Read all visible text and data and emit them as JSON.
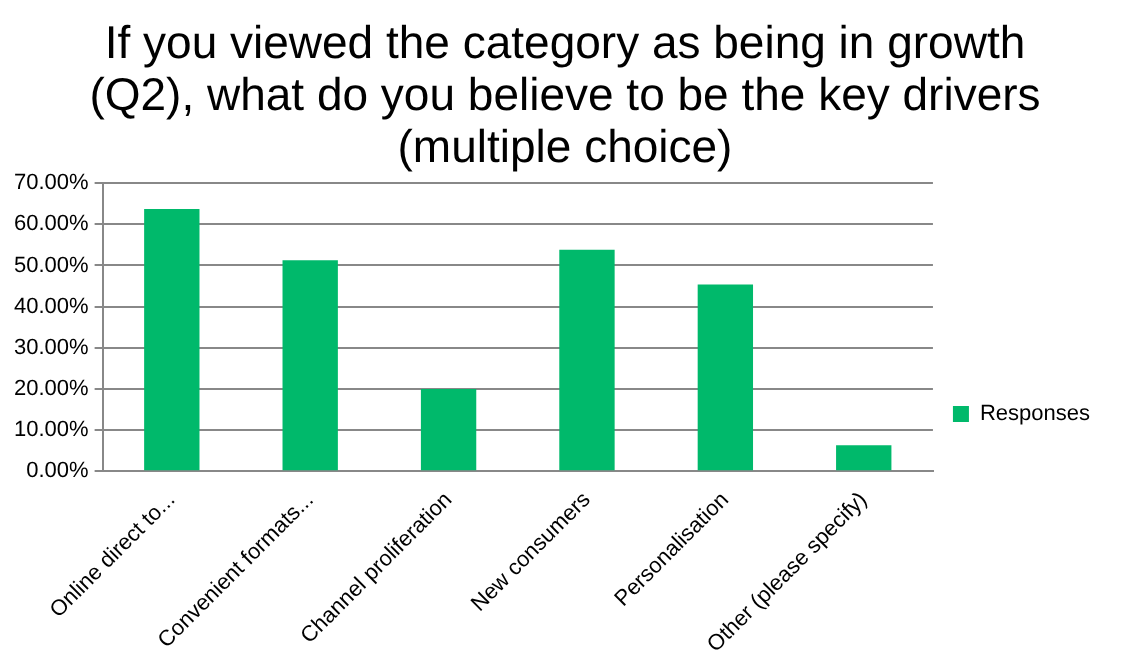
{
  "chart_data": {
    "type": "bar",
    "title": "If you viewed the category as being in growth (Q2), what do you believe to be the key drivers (multiple choice)",
    "categories": [
      "Online direct to...",
      "Convenient formats...",
      "Channel proliferation",
      "New consumers",
      "Personalisation",
      "Other (please specify)"
    ],
    "series": [
      {
        "name": "Responses",
        "color": "#00b96b",
        "values": [
          63.7,
          51.3,
          20,
          53.8,
          45.4,
          6.3
        ]
      }
    ],
    "ylim": [
      0,
      70
    ],
    "yticks": [
      {
        "value": 0,
        "label": "0.00%"
      },
      {
        "value": 10,
        "label": "10.00%"
      },
      {
        "value": 20,
        "label": "20.00%"
      },
      {
        "value": 30,
        "label": "30.00%"
      },
      {
        "value": 40,
        "label": "40.00%"
      },
      {
        "value": 50,
        "label": "50.00%"
      },
      {
        "value": 60,
        "label": "60.00%"
      },
      {
        "value": 70,
        "label": "70.00%"
      }
    ],
    "grid": "y",
    "legend": "right"
  }
}
